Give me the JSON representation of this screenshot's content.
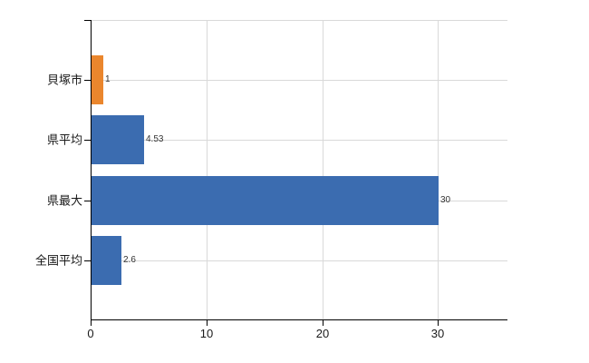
{
  "chart": {
    "title": "",
    "background_color": "#FFFFFF",
    "axis_color": "#000000",
    "gridline_color": "#D9D9D9",
    "category_label_color": "#1A1A1A",
    "tick_label_color": "#1A1A1A",
    "value_label_color": "#333333",
    "bar_color_default": "#3B6CB0",
    "bar_color_highlight": "#EA862D"
  },
  "chart_data": {
    "type": "bar",
    "orientation": "horizontal",
    "categories": [
      "貝塚市",
      "県平均",
      "県最大",
      "全国平均"
    ],
    "values": [
      1,
      4.53,
      30,
      2.6
    ],
    "value_labels": [
      "1",
      "4.53",
      "30",
      "2.6"
    ],
    "bar_colors": [
      "#EA862D",
      "#3B6CB0",
      "#3B6CB0",
      "#3B6CB0"
    ],
    "x_ticks": [
      0,
      10,
      20,
      30
    ],
    "x_tick_labels": [
      "0",
      "10",
      "20",
      "30"
    ],
    "xlim": [
      0,
      36
    ],
    "xlabel": "",
    "ylabel": "",
    "grid": true,
    "legend_position": "none"
  }
}
